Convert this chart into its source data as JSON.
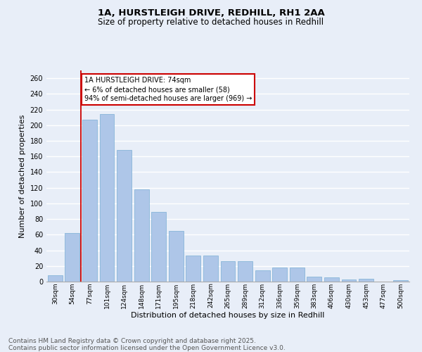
{
  "title_line1": "1A, HURSTLEIGH DRIVE, REDHILL, RH1 2AA",
  "title_line2": "Size of property relative to detached houses in Redhill",
  "xlabel": "Distribution of detached houses by size in Redhill",
  "ylabel": "Number of detached properties",
  "categories": [
    "30sqm",
    "54sqm",
    "77sqm",
    "101sqm",
    "124sqm",
    "148sqm",
    "171sqm",
    "195sqm",
    "218sqm",
    "242sqm",
    "265sqm",
    "289sqm",
    "312sqm",
    "336sqm",
    "359sqm",
    "383sqm",
    "406sqm",
    "430sqm",
    "453sqm",
    "477sqm",
    "500sqm"
  ],
  "values": [
    8,
    62,
    207,
    214,
    168,
    118,
    89,
    65,
    33,
    33,
    26,
    26,
    14,
    18,
    18,
    6,
    5,
    3,
    4,
    0,
    2
  ],
  "bar_color": "#aec6e8",
  "bar_edge_color": "#7aafd4",
  "annotation_text": "1A HURSTLEIGH DRIVE: 74sqm\n← 6% of detached houses are smaller (58)\n94% of semi-detached houses are larger (969) →",
  "annotation_box_facecolor": "#ffffff",
  "annotation_box_edgecolor": "#cc0000",
  "vline_color": "#cc0000",
  "vline_x": 1.5,
  "ylim": [
    0,
    270
  ],
  "yticks": [
    0,
    20,
    40,
    60,
    80,
    100,
    120,
    140,
    160,
    180,
    200,
    220,
    240,
    260
  ],
  "background_color": "#e8eef8",
  "grid_color": "#ffffff",
  "footer_text": "Contains HM Land Registry data © Crown copyright and database right 2025.\nContains public sector information licensed under the Open Government Licence v3.0.",
  "title_fontsize": 9.5,
  "subtitle_fontsize": 8.5,
  "label_fontsize": 8,
  "tick_fontsize": 7,
  "footer_fontsize": 6.5
}
